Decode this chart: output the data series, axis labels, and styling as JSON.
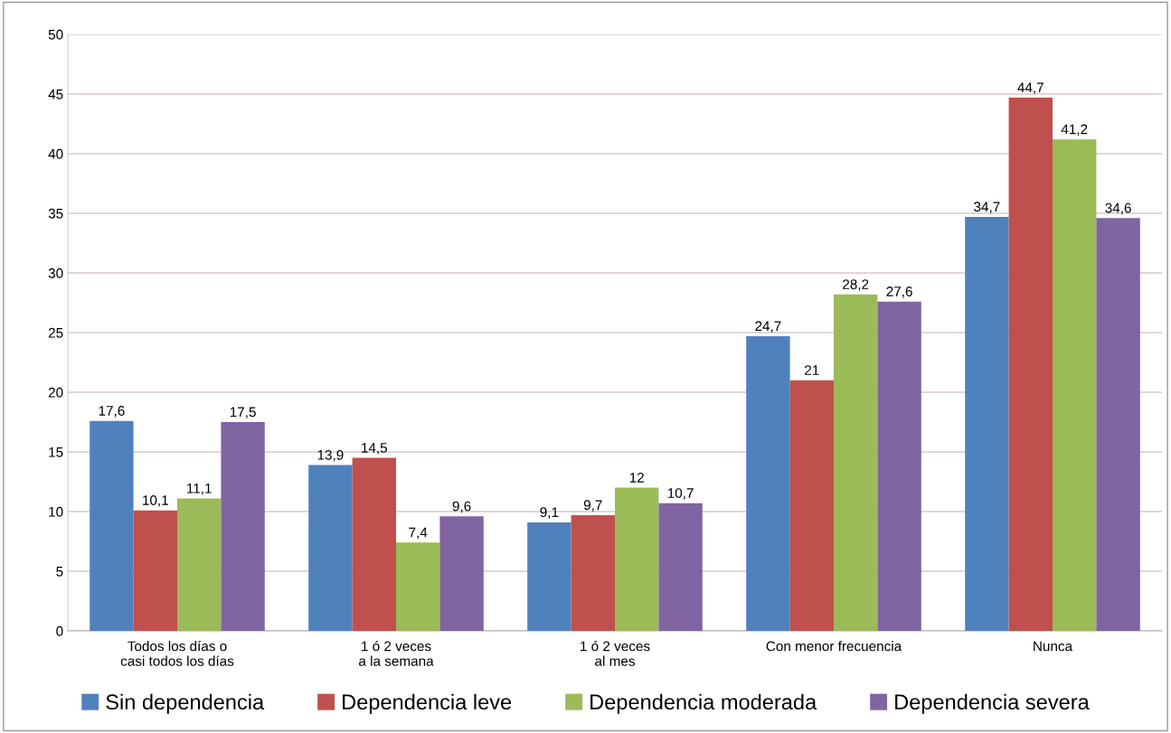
{
  "chart_data": {
    "type": "bar",
    "categories": [
      "Todos los días o\ncasi todos los días",
      "1 ó 2 veces\na la semana",
      "1 ó 2 veces\nal mes",
      "Con menor frecuencia",
      "Nunca"
    ],
    "series": [
      {
        "name": "Sin dependencia",
        "color": "#4f81bd",
        "values": [
          17.6,
          13.9,
          9.1,
          24.7,
          34.7
        ],
        "value_labels": [
          "17,6",
          "13,9",
          "9,1",
          "24,7",
          "34,7"
        ]
      },
      {
        "name": "Dependencia leve",
        "color": "#c0504d",
        "values": [
          10.1,
          14.5,
          9.7,
          21,
          44.7
        ],
        "value_labels": [
          "10,1",
          "14,5",
          "9,7",
          "21",
          "44,7"
        ]
      },
      {
        "name": "Dependencia moderada",
        "color": "#9bbb59",
        "values": [
          11.1,
          7.4,
          12,
          28.2,
          41.2
        ],
        "value_labels": [
          "11,1",
          "7,4",
          "12",
          "28,2",
          "41,2"
        ]
      },
      {
        "name": "Dependencia severa",
        "color": "#8064a2",
        "values": [
          17.5,
          9.6,
          10.7,
          27.6,
          34.6
        ],
        "value_labels": [
          "17,5",
          "9,6",
          "10,7",
          "27,6",
          "34,6"
        ]
      }
    ],
    "ylim": [
      0,
      50
    ],
    "yticks": [
      0,
      5,
      10,
      15,
      20,
      25,
      30,
      35,
      40,
      45,
      50
    ],
    "grid": "y",
    "legend": "bottom"
  }
}
